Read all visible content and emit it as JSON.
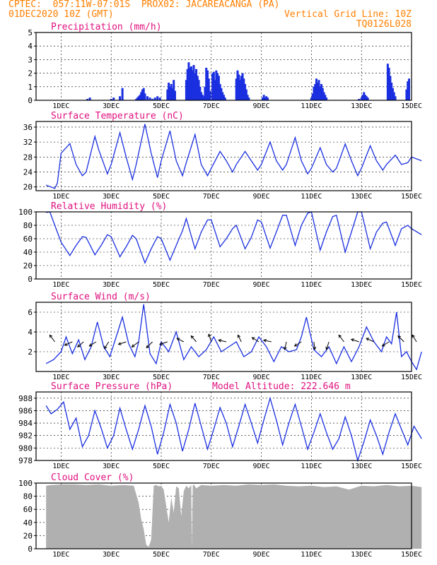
{
  "header": {
    "line1_left": "CPTEC:  057:11W-07:01S  PROX02: JACAREACANGA (PA)",
    "line2_left": "01DEC2020 10Z (GMT)",
    "line2_right": "Vertical Grid Line: 10Z",
    "line3_right": "TQ0126L028"
  },
  "colors": {
    "header": "#ff7f00",
    "title": "#e0107f",
    "series": "#1a2fe0",
    "cloud": "#b0b0b0",
    "axis": "#000000"
  },
  "x_axis": {
    "range_days": [
      0,
      15
    ],
    "tick_days": [
      1,
      3,
      5,
      7,
      9,
      11,
      13,
      15
    ],
    "tick_labels": [
      "1DEC",
      "3DEC",
      "5DEC",
      "7DEC",
      "9DEC",
      "11DEC",
      "13DEC",
      "15DEC"
    ]
  },
  "chart_data": [
    {
      "type": "bar",
      "title": "Precipitation (mm/h)",
      "ylim": [
        0,
        5
      ],
      "yticks": [
        0,
        1,
        2,
        3,
        4,
        5
      ],
      "x_units": "days since 01DEC2020 00Z",
      "x": [
        2.05,
        2.15,
        3.0,
        3.1,
        3.35,
        3.45,
        4.0,
        4.05,
        4.1,
        4.15,
        4.2,
        4.25,
        4.3,
        4.35,
        4.45,
        4.55,
        4.65,
        4.75,
        4.85,
        4.95,
        5.25,
        5.3,
        5.35,
        5.4,
        5.45,
        5.5,
        5.55,
        6.0,
        6.05,
        6.1,
        6.15,
        6.2,
        6.25,
        6.3,
        6.35,
        6.4,
        6.45,
        6.5,
        6.55,
        6.6,
        6.65,
        6.7,
        6.75,
        6.8,
        6.85,
        6.9,
        6.95,
        7.05,
        7.1,
        7.15,
        7.2,
        7.25,
        7.3,
        7.35,
        7.4,
        7.45,
        7.5,
        7.55,
        8.0,
        8.05,
        8.1,
        8.15,
        8.2,
        8.25,
        8.3,
        8.35,
        8.4,
        8.45,
        8.5,
        9.05,
        9.1,
        9.15,
        9.2,
        9.25,
        11.0,
        11.05,
        11.1,
        11.15,
        11.2,
        11.25,
        11.3,
        11.35,
        11.4,
        11.45,
        11.5,
        11.55,
        11.6,
        12.9,
        13.0,
        13.05,
        13.1,
        13.15,
        13.2,
        13.25,
        14.05,
        14.1,
        14.15,
        14.2,
        14.25,
        14.3,
        14.35,
        14.8,
        14.85,
        14.9
      ],
      "values": [
        0.1,
        0.2,
        0.1,
        0.2,
        0.3,
        0.9,
        0.1,
        0.2,
        0.3,
        0.4,
        0.6,
        0.8,
        0.9,
        0.5,
        0.3,
        0.2,
        0.1,
        0.2,
        0.3,
        0.2,
        0.8,
        1.3,
        1.0,
        1.2,
        0.9,
        1.5,
        0.7,
        1.5,
        2.3,
        2.8,
        2.4,
        2.5,
        2.2,
        2.6,
        2.0,
        2.3,
        1.8,
        1.5,
        1.0,
        0.6,
        0.4,
        0.3,
        1.0,
        2.4,
        2.2,
        1.6,
        0.7,
        2.0,
        2.1,
        1.5,
        2.2,
        2.0,
        1.8,
        1.2,
        0.9,
        0.6,
        0.4,
        0.2,
        1.6,
        2.2,
        1.9,
        1.5,
        1.8,
        2.0,
        1.6,
        1.2,
        0.8,
        0.4,
        0.2,
        0.2,
        0.4,
        0.2,
        0.3,
        0.2,
        0.2,
        0.5,
        1.0,
        1.2,
        1.6,
        1.3,
        1.5,
        1.0,
        1.2,
        0.9,
        0.6,
        0.4,
        0.2,
        0.1,
        0.2,
        0.4,
        0.6,
        0.4,
        0.3,
        0.2,
        2.7,
        2.4,
        1.8,
        1.3,
        0.9,
        0.6,
        0.3,
        0.8,
        1.4,
        1.6
      ]
    },
    {
      "type": "line",
      "title": "Surface Temperature (nC)",
      "ylim": [
        19,
        37.5
      ],
      "yticks": [
        20,
        24,
        28,
        32,
        36
      ],
      "x_units": "days since 01DEC2020 00Z",
      "x": [
        0.4,
        0.75,
        0.85,
        1.0,
        1.35,
        1.6,
        1.85,
        2.0,
        2.35,
        2.5,
        2.85,
        3.0,
        3.35,
        3.6,
        3.85,
        4.0,
        4.35,
        4.6,
        4.85,
        5.0,
        5.35,
        5.6,
        5.85,
        6.0,
        6.35,
        6.6,
        6.85,
        7.0,
        7.35,
        7.6,
        7.85,
        8.0,
        8.35,
        8.6,
        8.85,
        9.0,
        9.35,
        9.6,
        9.85,
        10.0,
        10.35,
        10.6,
        10.85,
        11.0,
        11.35,
        11.6,
        11.85,
        12.0,
        12.35,
        12.6,
        12.85,
        13.0,
        13.35,
        13.6,
        13.85,
        14.0,
        14.35,
        14.6,
        14.85,
        15.0,
        15.4
      ],
      "values": [
        20.5,
        19.6,
        21.0,
        29.0,
        31.6,
        26.0,
        23.0,
        24.0,
        33.5,
        30.0,
        23.5,
        26.0,
        34.5,
        28.0,
        22.0,
        26.0,
        36.8,
        29.0,
        22.5,
        27.0,
        35.0,
        27.0,
        23.0,
        26.5,
        34.0,
        26.0,
        23.0,
        25.0,
        29.5,
        27.0,
        24.0,
        26.0,
        29.5,
        27.0,
        24.5,
        26.0,
        32.0,
        27.0,
        24.5,
        26.0,
        33.2,
        27.0,
        23.5,
        25.0,
        30.5,
        26.0,
        24.0,
        25.0,
        31.5,
        27.0,
        23.0,
        25.0,
        31.0,
        27.0,
        24.5,
        26.0,
        28.5,
        26.0,
        26.5,
        28.0,
        27.0
      ]
    },
    {
      "type": "line",
      "title": "Relative Humidity (%)",
      "ylim": [
        0,
        100
      ],
      "yticks": [
        0,
        20,
        40,
        60,
        80,
        100
      ],
      "x_units": "days since 01DEC2020 00Z",
      "x": [
        0.4,
        0.55,
        0.75,
        1.0,
        1.35,
        1.6,
        1.85,
        2.0,
        2.35,
        2.6,
        2.85,
        3.0,
        3.35,
        3.6,
        3.85,
        4.0,
        4.35,
        4.6,
        4.85,
        5.0,
        5.35,
        5.6,
        5.85,
        6.0,
        6.35,
        6.6,
        6.85,
        7.0,
        7.35,
        7.6,
        7.85,
        8.0,
        8.35,
        8.6,
        8.85,
        9.0,
        9.35,
        9.6,
        9.85,
        10.0,
        10.35,
        10.6,
        10.85,
        11.0,
        11.35,
        11.6,
        11.85,
        12.0,
        12.35,
        12.6,
        12.85,
        13.0,
        13.35,
        13.6,
        13.85,
        14.0,
        14.35,
        14.6,
        14.85,
        15.0,
        15.4
      ],
      "values": [
        99,
        100,
        80,
        55,
        35,
        50,
        63,
        62,
        36,
        50,
        66,
        63,
        33,
        48,
        65,
        60,
        24,
        45,
        63,
        60,
        28,
        50,
        72,
        90,
        45,
        70,
        88,
        88,
        48,
        60,
        75,
        80,
        45,
        62,
        88,
        85,
        46,
        70,
        95,
        95,
        50,
        80,
        98,
        100,
        43,
        70,
        93,
        95,
        40,
        70,
        100,
        100,
        45,
        70,
        83,
        85,
        50,
        75,
        80,
        75,
        66
      ]
    },
    {
      "type": "line",
      "title": "Surface Wind (m/s)",
      "ylim": [
        0,
        7
      ],
      "yticks": [
        2,
        4,
        6
      ],
      "x_units": "days since 01DEC2020 00Z",
      "x": [
        0.4,
        0.7,
        1.0,
        1.2,
        1.45,
        1.7,
        1.95,
        2.2,
        2.45,
        2.7,
        2.95,
        3.2,
        3.45,
        3.7,
        3.95,
        4.1,
        4.3,
        4.55,
        4.8,
        5.0,
        5.3,
        5.6,
        5.9,
        6.2,
        6.5,
        6.8,
        7.1,
        7.4,
        7.7,
        8.0,
        8.3,
        8.6,
        8.9,
        9.2,
        9.5,
        9.8,
        10.1,
        10.4,
        10.6,
        10.8,
        11.1,
        11.4,
        11.7,
        12.0,
        12.3,
        12.6,
        12.9,
        13.2,
        13.5,
        13.8,
        14.0,
        14.2,
        14.4,
        14.6,
        14.8,
        15.0,
        15.2,
        15.4
      ],
      "values": [
        0.8,
        1.2,
        2.0,
        3.5,
        1.8,
        3.2,
        1.2,
        2.5,
        5.0,
        2.5,
        1.5,
        3.5,
        5.5,
        2.8,
        1.5,
        3.0,
        6.8,
        1.8,
        0.8,
        3.0,
        2.0,
        4.0,
        1.2,
        2.5,
        1.5,
        2.2,
        3.5,
        2.0,
        2.5,
        3.0,
        1.5,
        2.0,
        3.5,
        2.5,
        1.0,
        2.5,
        2.0,
        2.2,
        3.5,
        5.5,
        2.2,
        1.5,
        2.5,
        0.8,
        2.5,
        1.0,
        2.5,
        4.5,
        3.0,
        2.0,
        3.5,
        2.8,
        6.0,
        1.5,
        2.0,
        1.0,
        0.2,
        2.0
      ],
      "arrows": [
        {
          "x": 0.75,
          "u": -0.6,
          "v": 0.8
        },
        {
          "x": 1.45,
          "u": -0.9,
          "v": -0.4
        },
        {
          "x": 1.9,
          "u": -0.7,
          "v": -0.6
        },
        {
          "x": 2.4,
          "u": -0.8,
          "v": -0.5
        },
        {
          "x": 2.9,
          "u": -0.5,
          "v": -0.8
        },
        {
          "x": 3.6,
          "u": -0.9,
          "v": -0.3
        },
        {
          "x": 4.1,
          "u": -0.8,
          "v": -0.6
        },
        {
          "x": 4.65,
          "u": -0.7,
          "v": -0.7
        },
        {
          "x": 5.25,
          "u": -0.9,
          "v": -0.3
        },
        {
          "x": 5.9,
          "u": -0.8,
          "v": 0.4
        },
        {
          "x": 6.4,
          "u": -0.6,
          "v": 0.7
        },
        {
          "x": 7.0,
          "u": -0.3,
          "v": 0.9
        },
        {
          "x": 7.6,
          "u": -0.9,
          "v": 0.2
        },
        {
          "x": 8.2,
          "u": -0.4,
          "v": 0.8
        },
        {
          "x": 8.9,
          "u": -0.8,
          "v": 0.5
        },
        {
          "x": 9.4,
          "u": -0.9,
          "v": 0.2
        },
        {
          "x": 10.0,
          "u": -0.2,
          "v": -0.9
        },
        {
          "x": 10.6,
          "u": -0.8,
          "v": -0.5
        },
        {
          "x": 11.1,
          "u": 0.1,
          "v": -0.9
        },
        {
          "x": 11.7,
          "u": -0.3,
          "v": -0.9
        },
        {
          "x": 12.3,
          "u": -0.6,
          "v": 0.8
        },
        {
          "x": 12.9,
          "u": -0.9,
          "v": 0.3
        },
        {
          "x": 13.5,
          "u": -0.9,
          "v": 0.4
        },
        {
          "x": 14.1,
          "u": -0.8,
          "v": -0.5
        },
        {
          "x": 14.7,
          "u": -0.7,
          "v": 0.7
        },
        {
          "x": 15.2,
          "u": -0.5,
          "v": 0.8
        }
      ]
    },
    {
      "type": "line",
      "title": "Surface Pressure (hPa)",
      "annotation": "Model Altitude: 222.646 m",
      "ylim": [
        978,
        989
      ],
      "yticks": [
        978,
        980,
        982,
        984,
        986,
        988
      ],
      "x_units": "days since 01DEC2020 00Z",
      "x": [
        0.4,
        0.6,
        0.85,
        1.1,
        1.35,
        1.6,
        1.85,
        2.1,
        2.35,
        2.6,
        2.85,
        3.1,
        3.35,
        3.6,
        3.85,
        4.1,
        4.35,
        4.6,
        4.85,
        5.1,
        5.35,
        5.6,
        5.85,
        6.1,
        6.35,
        6.6,
        6.85,
        7.1,
        7.35,
        7.6,
        7.85,
        8.1,
        8.35,
        8.6,
        8.85,
        9.1,
        9.35,
        9.6,
        9.85,
        10.1,
        10.35,
        10.6,
        10.85,
        11.1,
        11.35,
        11.6,
        11.85,
        12.1,
        12.35,
        12.6,
        12.85,
        13.1,
        13.35,
        13.6,
        13.85,
        14.1,
        14.35,
        14.6,
        14.85,
        15.1,
        15.4
      ],
      "values": [
        986.8,
        985.5,
        986.2,
        987.4,
        983.0,
        984.8,
        980.2,
        982.0,
        986.0,
        983.2,
        980.0,
        982.0,
        986.4,
        983.0,
        979.8,
        983.0,
        986.8,
        983.5,
        979.0,
        982.5,
        987.0,
        984.0,
        979.5,
        983.0,
        987.2,
        983.5,
        979.8,
        983.0,
        986.5,
        984.0,
        980.2,
        983.5,
        987.0,
        984.0,
        980.8,
        984.5,
        988.0,
        984.5,
        980.5,
        984.0,
        987.0,
        983.5,
        979.8,
        982.5,
        985.5,
        982.5,
        979.8,
        981.5,
        985.0,
        982.0,
        978.0,
        981.0,
        984.5,
        982.0,
        979.0,
        982.5,
        985.5,
        983.0,
        980.5,
        983.5,
        981.5
      ]
    },
    {
      "type": "area",
      "title": "Cloud Cover (%)",
      "ylim": [
        0,
        100
      ],
      "yticks": [
        0,
        20,
        40,
        60,
        80,
        100
      ],
      "x_units": "days since 01DEC2020 00Z",
      "x": [
        0.4,
        0.6,
        1.0,
        1.5,
        2.0,
        2.5,
        3.0,
        3.5,
        3.9,
        4.1,
        4.2,
        4.3,
        4.4,
        4.5,
        4.6,
        4.7,
        4.8,
        4.9,
        5.0,
        5.1,
        5.2,
        5.3,
        5.4,
        5.5,
        5.6,
        5.7,
        5.8,
        5.9,
        6.0,
        6.1,
        6.2,
        6.22,
        6.26,
        6.3,
        6.4,
        6.6,
        7.0,
        7.5,
        8.0,
        8.5,
        9.0,
        9.5,
        10.0,
        10.5,
        11.0,
        11.5,
        12.0,
        12.5,
        13.0,
        13.5,
        14.0,
        14.5,
        15.0,
        15.4
      ],
      "values": [
        96,
        97,
        98,
        98,
        97,
        98,
        96,
        97,
        96,
        70,
        45,
        30,
        6,
        3,
        14,
        96,
        97,
        95,
        96,
        90,
        65,
        40,
        78,
        55,
        95,
        92,
        50,
        88,
        96,
        92,
        97,
        0,
        96,
        98,
        92,
        97,
        96,
        97,
        96,
        98,
        97,
        98,
        96,
        95,
        96,
        94,
        95,
        90,
        96,
        95,
        97,
        95,
        96,
        94
      ]
    }
  ]
}
